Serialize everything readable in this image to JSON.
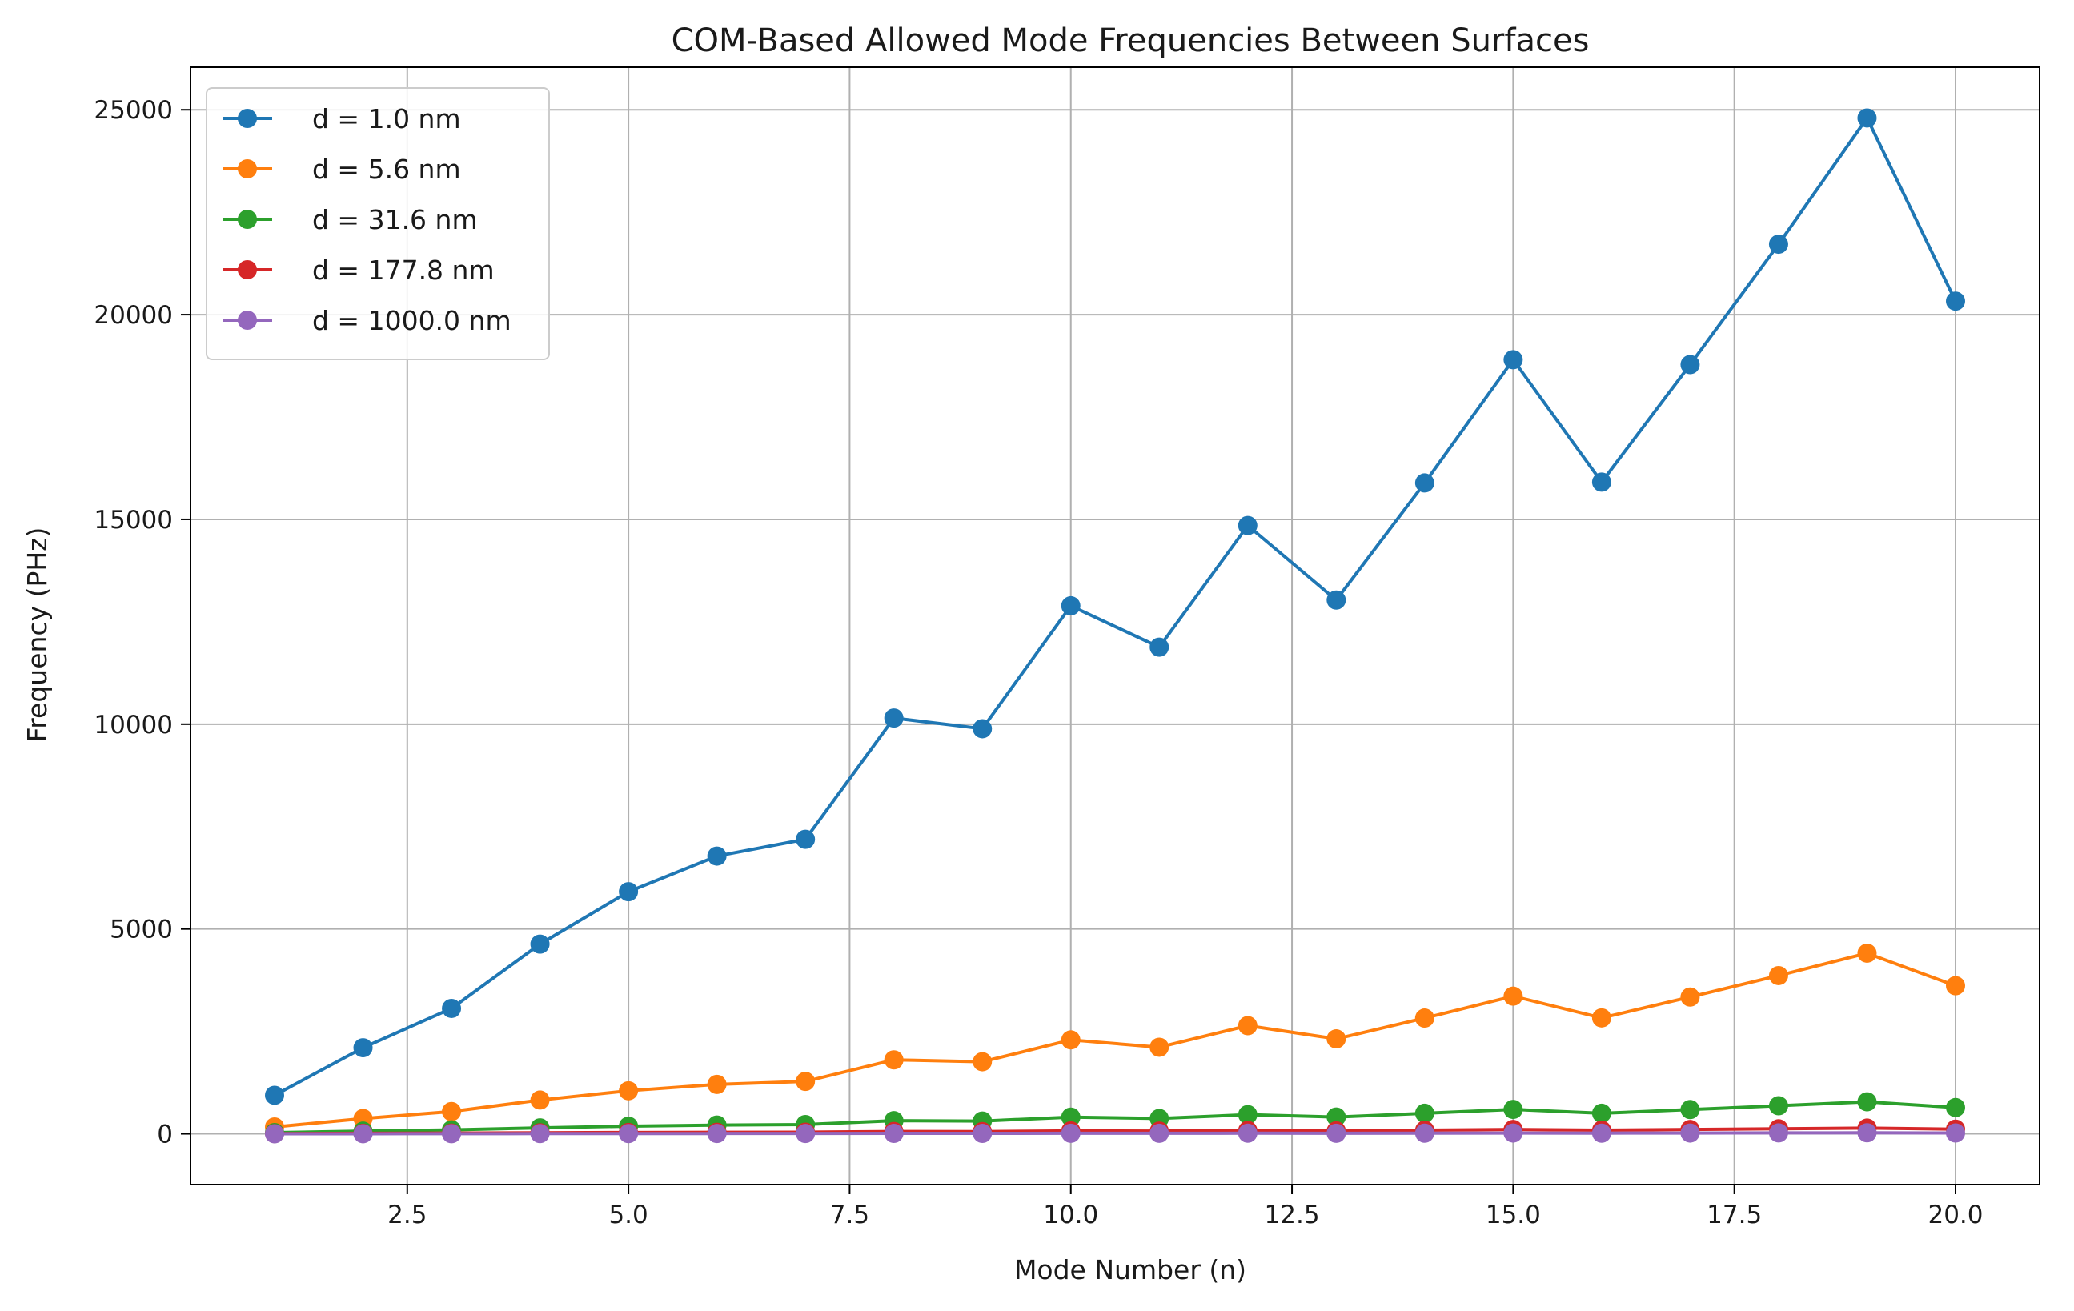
{
  "chart_data": {
    "type": "line",
    "title": "COM-Based Allowed Mode Frequencies Between Surfaces",
    "xlabel": "Mode Number (n)",
    "ylabel": "Frequency (PHz)",
    "xlim": [
      0.05,
      20.95
    ],
    "ylim": [
      -1240,
      26040
    ],
    "x_ticks": [
      2.5,
      5.0,
      7.5,
      10.0,
      12.5,
      15.0,
      17.5,
      20.0
    ],
    "x_tick_labels": [
      "2.5",
      "5.0",
      "7.5",
      "10.0",
      "12.5",
      "15.0",
      "17.5",
      "20.0"
    ],
    "y_ticks": [
      0,
      5000,
      10000,
      15000,
      20000,
      25000
    ],
    "y_tick_labels": [
      "0",
      "5000",
      "10000",
      "15000",
      "20000",
      "25000"
    ],
    "grid": true,
    "legend_position": "top-left",
    "x": [
      1,
      2,
      3,
      4,
      5,
      6,
      7,
      8,
      9,
      10,
      11,
      12,
      13,
      14,
      15,
      16,
      17,
      18,
      19,
      20
    ],
    "series": [
      {
        "name": "d = 1.0 nm",
        "color": "#1f77b4",
        "values": [
          940,
          2100,
          3060,
          4630,
          5910,
          6780,
          7190,
          10150,
          9890,
          12890,
          11880,
          14850,
          13030,
          15890,
          18900,
          15910,
          18780,
          21720,
          24800,
          20330
        ]
      },
      {
        "name": "d = 5.6 nm",
        "color": "#ff7f0e",
        "values": [
          167,
          373,
          543,
          823,
          1050,
          1205,
          1278,
          1804,
          1758,
          2291,
          2112,
          2639,
          2316,
          2824,
          3359,
          2828,
          3338,
          3861,
          4408,
          3614
        ]
      },
      {
        "name": "d = 31.6 nm",
        "color": "#2ca02c",
        "values": [
          30,
          66,
          96,
          146,
          186,
          213,
          226,
          320,
          312,
          406,
          374,
          468,
          410,
          501,
          595,
          501,
          591,
          684,
          781,
          640
        ]
      },
      {
        "name": "d = 177.8 nm",
        "color": "#d62728",
        "values": [
          5,
          12,
          17,
          26,
          33,
          38,
          40,
          57,
          55,
          72,
          67,
          83,
          73,
          89,
          106,
          89,
          105,
          122,
          139,
          114
        ]
      },
      {
        "name": "d = 1000.0 nm",
        "color": "#9467bd",
        "values": [
          1,
          2,
          3,
          5,
          6,
          7,
          7,
          10,
          10,
          13,
          12,
          15,
          13,
          16,
          19,
          16,
          19,
          22,
          25,
          20
        ]
      }
    ]
  }
}
